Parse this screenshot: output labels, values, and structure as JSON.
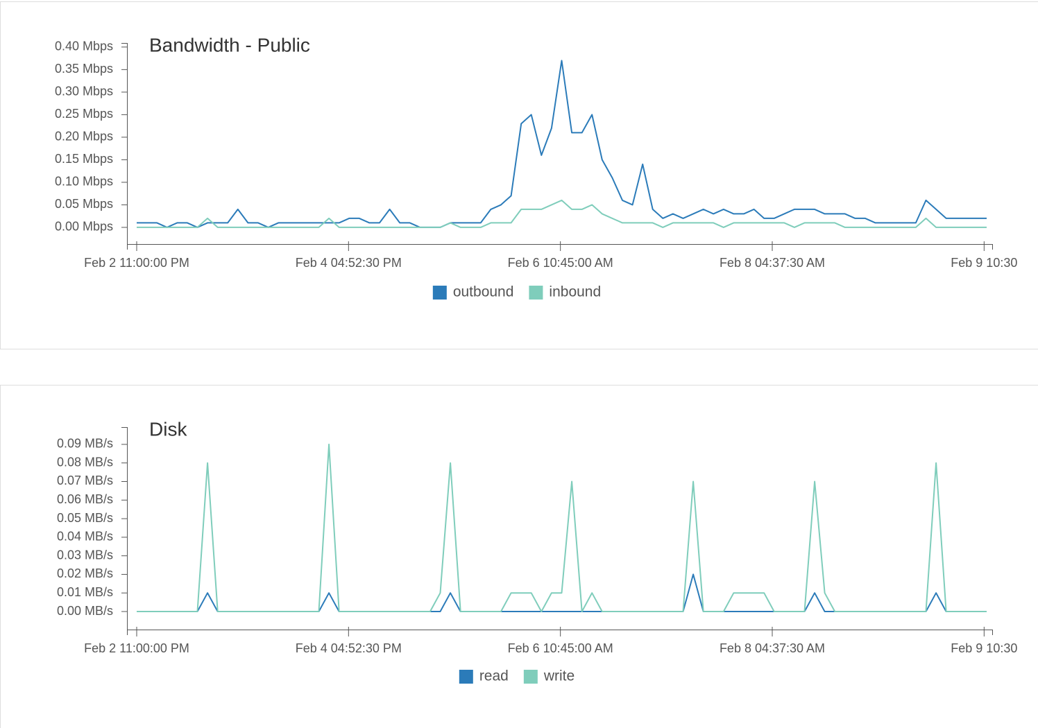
{
  "chart_data": [
    {
      "type": "line",
      "title": "Bandwidth - Public",
      "x": [
        0,
        2,
        4,
        6,
        8,
        10,
        12,
        14,
        16,
        18,
        20,
        22,
        24,
        26,
        28,
        30,
        32,
        34,
        36,
        38,
        40,
        42,
        44,
        46,
        48,
        50,
        52,
        54,
        56,
        58,
        60,
        62,
        64,
        66,
        68,
        70,
        72,
        74,
        76,
        78,
        80,
        82,
        84,
        86,
        88,
        90,
        92,
        94,
        96,
        98,
        100,
        102,
        104,
        106,
        108,
        110,
        112,
        114,
        116,
        118,
        120,
        122,
        124,
        126,
        128,
        130,
        132,
        134,
        136,
        138,
        140,
        142,
        144,
        146,
        148,
        150,
        152,
        154,
        156,
        158,
        160,
        162,
        164,
        166,
        168
      ],
      "series": [
        {
          "name": "outbound",
          "color": "#2b7bb9",
          "values": [
            0.01,
            0.01,
            0.01,
            0,
            0.01,
            0.01,
            0,
            0.01,
            0.01,
            0.01,
            0.04,
            0.01,
            0.01,
            0,
            0.01,
            0.01,
            0.01,
            0.01,
            0.01,
            0.01,
            0.01,
            0.02,
            0.02,
            0.01,
            0.01,
            0.04,
            0.01,
            0.01,
            0,
            0,
            0,
            0.01,
            0.01,
            0.01,
            0.01,
            0.04,
            0.05,
            0.07,
            0.23,
            0.25,
            0.16,
            0.22,
            0.37,
            0.21,
            0.21,
            0.25,
            0.15,
            0.11,
            0.06,
            0.05,
            0.14,
            0.04,
            0.02,
            0.03,
            0.02,
            0.03,
            0.04,
            0.03,
            0.04,
            0.03,
            0.03,
            0.04,
            0.02,
            0.02,
            0.03,
            0.04,
            0.04,
            0.04,
            0.03,
            0.03,
            0.03,
            0.02,
            0.02,
            0.01,
            0.01,
            0.01,
            0.01,
            0.01,
            0.06,
            0.04,
            0.02,
            0.02,
            0.02,
            0.02,
            0.02
          ]
        },
        {
          "name": "inbound",
          "color": "#7fcdbb",
          "values": [
            0,
            0,
            0,
            0,
            0,
            0,
            0,
            0.02,
            0,
            0,
            0,
            0,
            0,
            0,
            0,
            0,
            0,
            0,
            0,
            0.02,
            0,
            0,
            0,
            0,
            0,
            0,
            0,
            0,
            0,
            0,
            0,
            0.01,
            0,
            0,
            0,
            0.01,
            0.01,
            0.01,
            0.04,
            0.04,
            0.04,
            0.05,
            0.06,
            0.04,
            0.04,
            0.05,
            0.03,
            0.02,
            0.01,
            0.01,
            0.01,
            0.01,
            0,
            0.01,
            0.01,
            0.01,
            0.01,
            0.01,
            0,
            0.01,
            0.01,
            0.01,
            0.01,
            0.01,
            0.01,
            0,
            0.01,
            0.01,
            0.01,
            0.01,
            0,
            0,
            0,
            0,
            0,
            0,
            0,
            0,
            0.02,
            0,
            0,
            0,
            0,
            0,
            0
          ]
        }
      ],
      "xlim": [
        -1.92,
        169.1
      ],
      "xticks": [
        {
          "value": 0,
          "label": "Feb 2 11:00:00 PM"
        },
        {
          "value": 41.875,
          "label": "Feb 4 04:52:30 PM"
        },
        {
          "value": 83.75,
          "label": "Feb 6 10:45:00 AM"
        },
        {
          "value": 125.625,
          "label": "Feb 8 04:37:30 AM"
        },
        {
          "value": 167.5,
          "label": "Feb 9 10:30"
        }
      ],
      "ylim": [
        -0.037,
        0.409
      ],
      "yticks": [
        {
          "value": 0,
          "label": "0.00 Mbps"
        },
        {
          "value": 0.05,
          "label": "0.05 Mbps"
        },
        {
          "value": 0.1,
          "label": "0.10 Mbps"
        },
        {
          "value": 0.15,
          "label": "0.15 Mbps"
        },
        {
          "value": 0.2,
          "label": "0.20 Mbps"
        },
        {
          "value": 0.25,
          "label": "0.25 Mbps"
        },
        {
          "value": 0.3,
          "label": "0.30 Mbps"
        },
        {
          "value": 0.35,
          "label": "0.35 Mbps"
        },
        {
          "value": 0.4,
          "label": "0.40 Mbps"
        }
      ],
      "legend": "bottom"
    },
    {
      "type": "line",
      "title": "Disk",
      "x": [
        0,
        2,
        4,
        6,
        8,
        10,
        12,
        14,
        16,
        18,
        20,
        22,
        24,
        26,
        28,
        30,
        32,
        34,
        36,
        38,
        40,
        42,
        44,
        46,
        48,
        50,
        52,
        54,
        56,
        58,
        60,
        62,
        64,
        66,
        68,
        70,
        72,
        74,
        76,
        78,
        80,
        82,
        84,
        86,
        88,
        90,
        92,
        94,
        96,
        98,
        100,
        102,
        104,
        106,
        108,
        110,
        112,
        114,
        116,
        118,
        120,
        122,
        124,
        126,
        128,
        130,
        132,
        134,
        136,
        138,
        140,
        142,
        144,
        146,
        148,
        150,
        152,
        154,
        156,
        158,
        160,
        162,
        164,
        166,
        168
      ],
      "series": [
        {
          "name": "read",
          "color": "#2b7bb9",
          "values": [
            0,
            0,
            0,
            0,
            0,
            0,
            0,
            0.01,
            0,
            0,
            0,
            0,
            0,
            0,
            0,
            0,
            0,
            0,
            0,
            0.01,
            0,
            0,
            0,
            0,
            0,
            0,
            0,
            0,
            0,
            0,
            0,
            0.01,
            0,
            0,
            0,
            0,
            0,
            0,
            0,
            0,
            0,
            0,
            0,
            0,
            0,
            0,
            0,
            0,
            0,
            0,
            0,
            0,
            0,
            0,
            0,
            0.02,
            0,
            0,
            0,
            0,
            0,
            0,
            0,
            0,
            0,
            0,
            0,
            0.01,
            0,
            0,
            0,
            0,
            0,
            0,
            0,
            0,
            0,
            0,
            0,
            0.01,
            0,
            0,
            0,
            0,
            0
          ]
        },
        {
          "name": "write",
          "color": "#7fcdbb",
          "values": [
            0,
            0,
            0,
            0,
            0,
            0,
            0,
            0.08,
            0,
            0,
            0,
            0,
            0,
            0,
            0,
            0,
            0,
            0,
            0,
            0.09,
            0,
            0,
            0,
            0,
            0,
            0,
            0,
            0,
            0,
            0,
            0.01,
            0.08,
            0,
            0,
            0,
            0,
            0,
            0.01,
            0.01,
            0.01,
            0,
            0.01,
            0.01,
            0.07,
            0,
            0.01,
            0,
            0,
            0,
            0,
            0,
            0,
            0,
            0,
            0,
            0.07,
            0,
            0,
            0,
            0.01,
            0.01,
            0.01,
            0.01,
            0,
            0,
            0,
            0,
            0.07,
            0.01,
            0,
            0,
            0,
            0,
            0,
            0,
            0,
            0,
            0,
            0,
            0.08,
            0,
            0,
            0,
            0,
            0
          ]
        }
      ],
      "xlim": [
        -1.92,
        169.1
      ],
      "xticks": [
        {
          "value": 0,
          "label": "Feb 2 11:00:00 PM"
        },
        {
          "value": 41.875,
          "label": "Feb 4 04:52:30 PM"
        },
        {
          "value": 83.75,
          "label": "Feb 6 10:45:00 AM"
        },
        {
          "value": 125.625,
          "label": "Feb 8 04:37:30 AM"
        },
        {
          "value": 167.5,
          "label": "Feb 9 10:30"
        }
      ],
      "ylim": [
        -0.0097,
        0.0993
      ],
      "yticks": [
        {
          "value": 0,
          "label": "0.00 MB/s"
        },
        {
          "value": 0.01,
          "label": "0.01 MB/s"
        },
        {
          "value": 0.02,
          "label": "0.02 MB/s"
        },
        {
          "value": 0.03,
          "label": "0.03 MB/s"
        },
        {
          "value": 0.04,
          "label": "0.04 MB/s"
        },
        {
          "value": 0.05,
          "label": "0.05 MB/s"
        },
        {
          "value": 0.06,
          "label": "0.06 MB/s"
        },
        {
          "value": 0.07,
          "label": "0.07 MB/s"
        },
        {
          "value": 0.08,
          "label": "0.08 MB/s"
        },
        {
          "value": 0.09,
          "label": "0.09 MB/s"
        }
      ],
      "legend": "bottom"
    }
  ]
}
